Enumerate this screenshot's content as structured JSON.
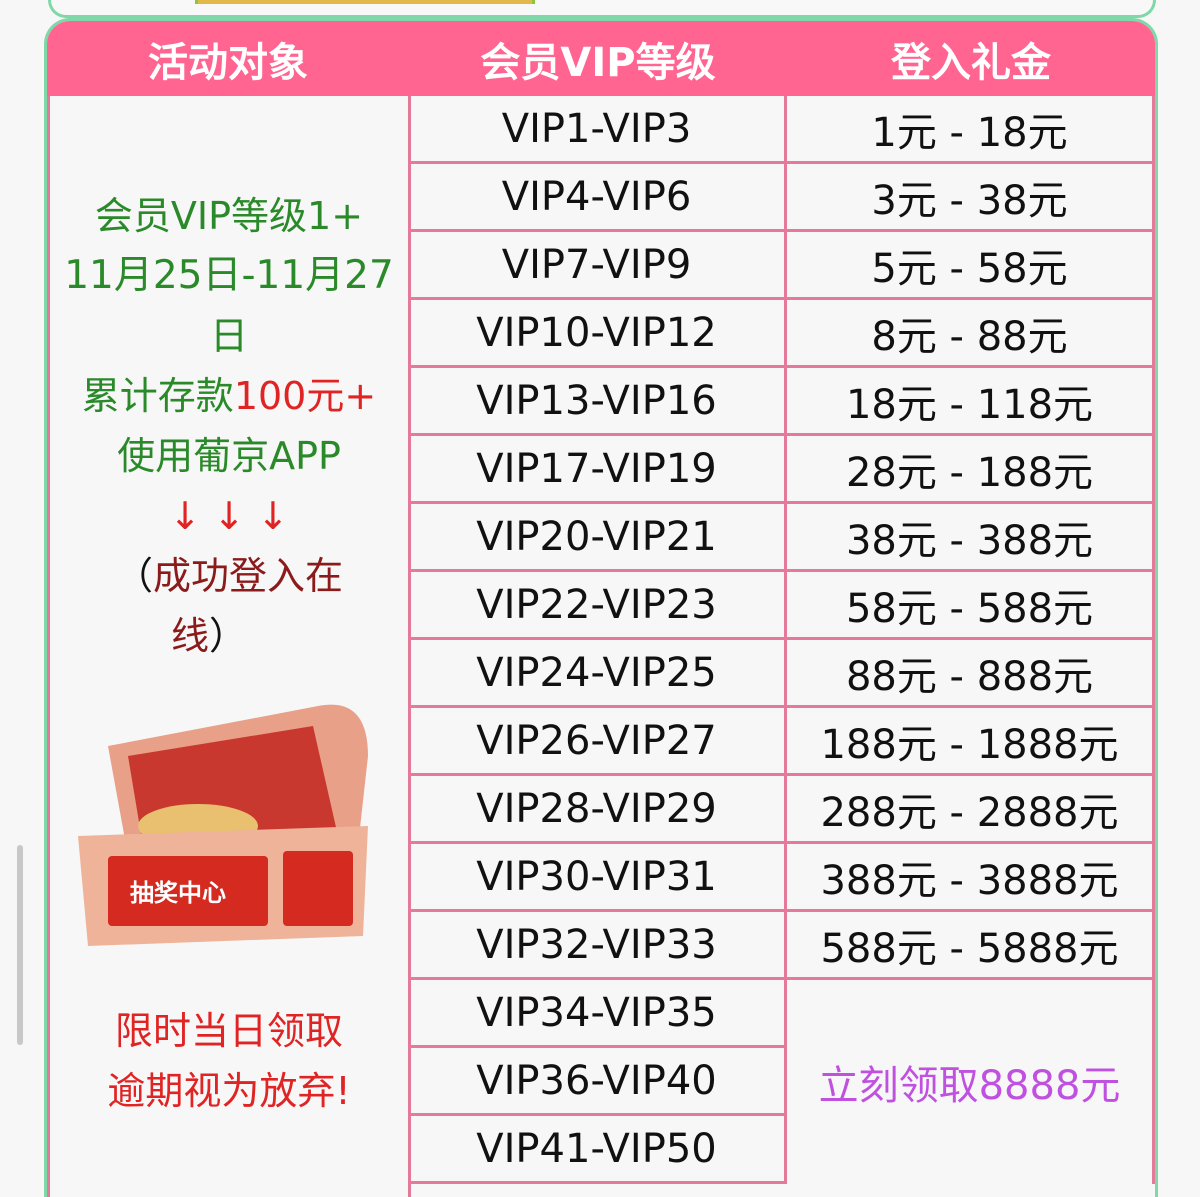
{
  "headers": [
    "活动对象",
    "会员VIP等级",
    "登入礼金"
  ],
  "left": {
    "line1": "会员VIP等级1+",
    "line2": "11月25日-11月27",
    "line3": "日",
    "line4a": "累计存款",
    "line4b": "100元+",
    "line5": "使用葡京APP",
    "arrows": "↓ ↓ ↓",
    "paren_open": "（",
    "note1": "成功登入在",
    "note2": "线",
    "paren_close": "）",
    "chest_label": "抽奖中心",
    "warn1": "限时当日领取",
    "warn2": "逾期视为放弃!"
  },
  "rows": [
    {
      "level": "VIP1-VIP3",
      "bonus": "1元 - 18元"
    },
    {
      "level": "VIP4-VIP6",
      "bonus": "3元 - 38元"
    },
    {
      "level": "VIP7-VIP9",
      "bonus": "5元 - 58元"
    },
    {
      "level": "VIP10-VIP12",
      "bonus": "8元 - 88元"
    },
    {
      "level": "VIP13-VIP16",
      "bonus": "18元 - 118元"
    },
    {
      "level": "VIP17-VIP19",
      "bonus": "28元 - 188元"
    },
    {
      "level": "VIP20-VIP21",
      "bonus": "38元 - 388元"
    },
    {
      "level": "VIP22-VIP23",
      "bonus": "58元 - 588元"
    },
    {
      "level": "VIP24-VIP25",
      "bonus": "88元 - 888元"
    },
    {
      "level": "VIP26-VIP27",
      "bonus": "188元 - 1888元"
    },
    {
      "level": "VIP28-VIP29",
      "bonus": "288元 - 2888元"
    },
    {
      "level": "VIP30-VIP31",
      "bonus": "388元 - 3888元"
    },
    {
      "level": "VIP32-VIP33",
      "bonus": "588元 - 5888元"
    },
    {
      "level": "VIP34-VIP35"
    },
    {
      "level": "VIP36-VIP40"
    },
    {
      "level": "VIP41-VIP50"
    }
  ],
  "merged_bonus": "立刻领取8888元",
  "colors": {
    "header": "#ff6590",
    "border": "#e5799a",
    "card_border": "#7ed8a8",
    "green_text": "#2a8a2a",
    "red_text": "#e02424",
    "purple_text": "#c050e0"
  }
}
